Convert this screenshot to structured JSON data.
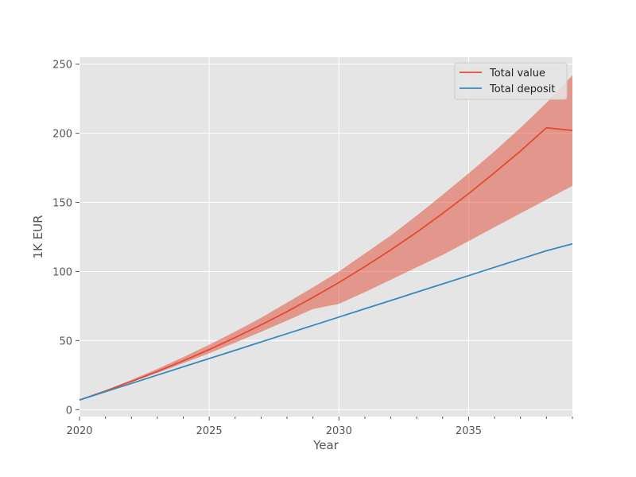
{
  "chart_data": {
    "type": "line",
    "title": "",
    "xlabel": "Year",
    "ylabel": "1K EUR",
    "xlim": [
      2020,
      2039
    ],
    "ylim": [
      -5,
      255
    ],
    "xticks": [
      2020,
      2025,
      2030,
      2035
    ],
    "yticks": [
      0,
      50,
      100,
      150,
      200,
      250
    ],
    "grid": true,
    "legend_position": "top-right",
    "x": [
      2020,
      2021,
      2022,
      2023,
      2024,
      2025,
      2026,
      2027,
      2028,
      2029,
      2030,
      2031,
      2032,
      2033,
      2034,
      2035,
      2036,
      2037,
      2038,
      2039
    ],
    "series": [
      {
        "name": "Total value",
        "color": "#e24a33",
        "values": [
          7,
          13.5,
          20.4,
          27.7,
          35.4,
          43.5,
          52.2,
          61.3,
          71,
          81.2,
          92,
          103.5,
          115.6,
          128.4,
          142,
          156.3,
          171.5,
          187.2,
          204,
          202
        ]
      },
      {
        "name": "Total deposit",
        "color": "#348abd",
        "values": [
          7,
          13,
          19,
          25,
          31,
          37,
          43,
          49,
          55,
          61,
          67,
          73,
          79,
          85,
          91,
          97,
          103,
          109,
          115,
          120
        ]
      }
    ],
    "band": {
      "series": "Total value",
      "color": "#e24a33",
      "lower": [
        7,
        13.2,
        19.8,
        26.6,
        33.6,
        40.8,
        48.5,
        56.3,
        64.5,
        72.8,
        76.5,
        85,
        94,
        103,
        112,
        122,
        132,
        142,
        152,
        162
      ],
      "upper": [
        7,
        14,
        21.5,
        29.5,
        38,
        47,
        56.5,
        66.5,
        77.5,
        88.5,
        100,
        113,
        126,
        140.5,
        155.5,
        171,
        187,
        204,
        222,
        242
      ]
    }
  }
}
